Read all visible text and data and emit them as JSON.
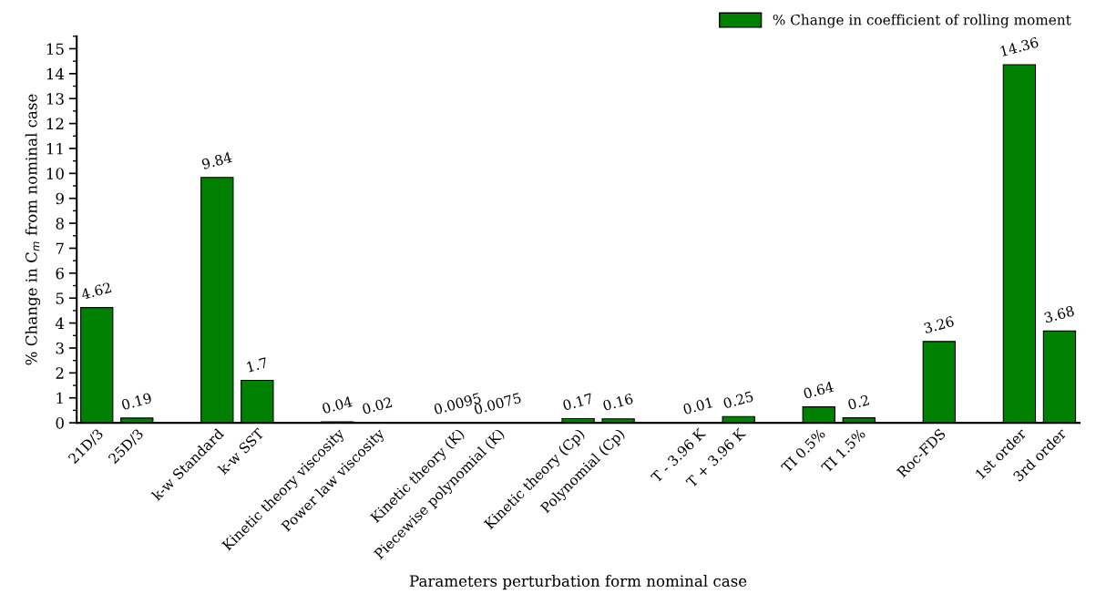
{
  "chart_data": {
    "type": "bar",
    "xlabel": "Parameters perturbation form nominal case",
    "ylabel": "% Change in C$_{m}$ from nominal case",
    "categories": [
      "21D/3",
      "25D/3",
      null,
      "k-w Standard",
      "k-w SST",
      null,
      "Kinetic theory viscosity",
      "Power law viscosity",
      null,
      "Kinetic theory (K)",
      "Piecewise polynomial (K)",
      null,
      "Kinetic theory (Cp)",
      "Polynomial (Cp)",
      null,
      "T - 3.96 K",
      "T + 3.96 K",
      null,
      "TI 0.5%",
      "TI 1.5%",
      null,
      "Roc-FDS",
      null,
      "1st order",
      "3rd order"
    ],
    "series": [
      {
        "name": "% Change in coefficient of rolling moment",
        "color": "#008000",
        "values": [
          4.62,
          0.19,
          null,
          9.84,
          1.7,
          null,
          0.04,
          0.02,
          null,
          0.0095,
          0.0075,
          null,
          0.17,
          0.16,
          null,
          0.01,
          0.25,
          null,
          0.64,
          0.2,
          null,
          3.26,
          null,
          14.36,
          3.68
        ]
      }
    ],
    "ylim": [
      0,
      15.5
    ],
    "yticks": [
      0,
      1,
      2,
      3,
      4,
      5,
      6,
      7,
      8,
      9,
      10,
      11,
      12,
      13,
      14,
      15
    ],
    "grid": false,
    "legend": "top right",
    "data_labels": true
  }
}
